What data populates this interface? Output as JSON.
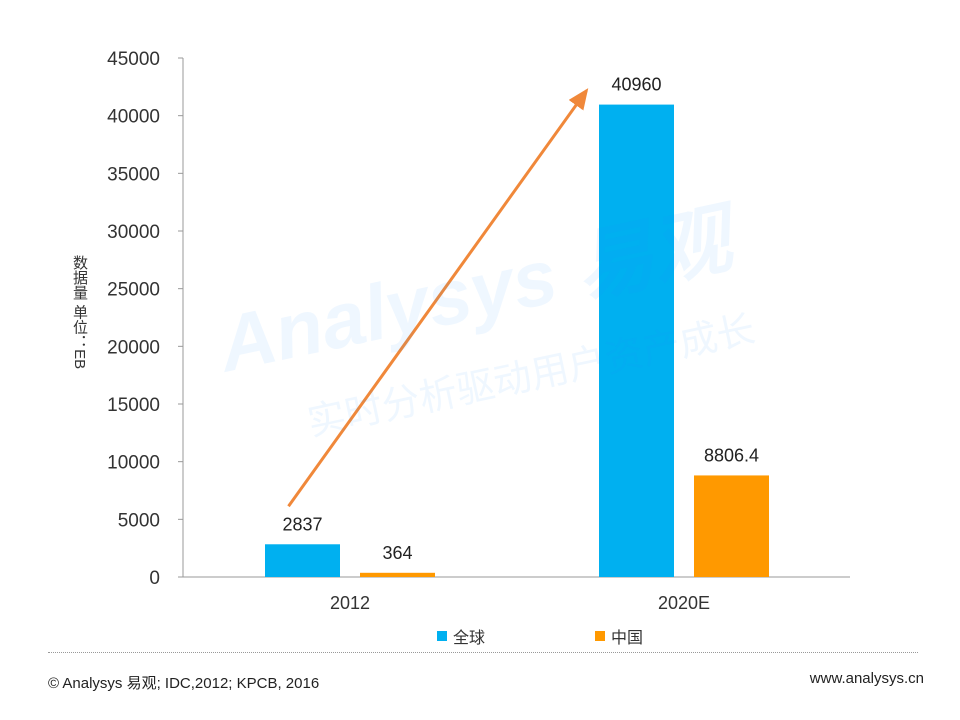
{
  "chart_data": {
    "type": "bar",
    "categories": [
      "2012",
      "2020E"
    ],
    "series": [
      {
        "name": "全球",
        "values": [
          2837,
          40960
        ],
        "color": "#00B0F0",
        "labels": [
          "2837",
          "40960"
        ]
      },
      {
        "name": "中国",
        "values": [
          364,
          8806.4
        ],
        "color": "#FF9900",
        "labels": [
          "364",
          "8806.4"
        ]
      }
    ],
    "ylabel": "数据量 单位：EB",
    "ylim": [
      0,
      45000
    ],
    "yticks": [
      0,
      5000,
      10000,
      15000,
      20000,
      25000,
      30000,
      35000,
      40000,
      45000
    ],
    "grid": false,
    "legend_position": "bottom",
    "annotation": {
      "type": "arrow",
      "color": "#F0883A"
    }
  },
  "legend": {
    "global": "全球",
    "china": "中国"
  },
  "footer": {
    "source": "© Analysys 易观;  IDC,2012;  KPCB, 2016",
    "website": "www.analysys.cn"
  },
  "watermark": {
    "brand": "Analysys 易观",
    "slogan": "实时分析驱动用户资产成长"
  }
}
